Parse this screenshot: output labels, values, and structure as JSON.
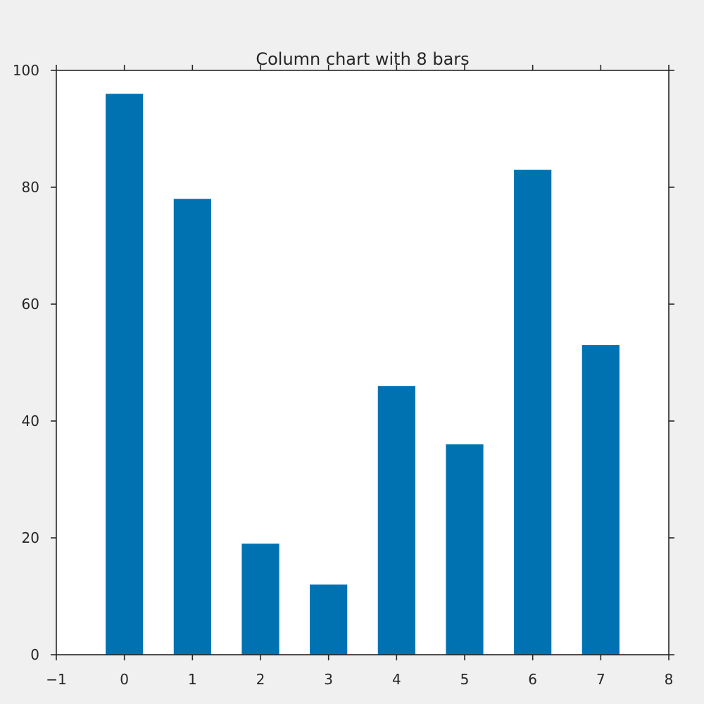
{
  "chart_data": {
    "type": "bar",
    "title": "Column chart with 8 bars",
    "xlabel": "",
    "ylabel": "",
    "x": [
      0,
      1,
      2,
      3,
      4,
      5,
      6,
      7
    ],
    "values": [
      96,
      78,
      19,
      12,
      46,
      36,
      83,
      53
    ],
    "xlim": [
      -1,
      8
    ],
    "ylim": [
      0,
      100
    ],
    "x_ticks": [
      -1,
      0,
      1,
      2,
      3,
      4,
      5,
      6,
      7,
      8
    ],
    "x_tick_labels": [
      "−1",
      "0",
      "1",
      "2",
      "3",
      "4",
      "5",
      "6",
      "7",
      "8"
    ],
    "y_ticks": [
      0,
      20,
      40,
      60,
      80,
      100
    ],
    "y_tick_labels": [
      "0",
      "20",
      "40",
      "60",
      "80",
      "100"
    ],
    "grid": false,
    "legend": "none",
    "bar_color": "#0072b2",
    "axis_color": "#262626",
    "background_color": "#f0f0f0",
    "plot_background_color": "#ffffff"
  }
}
